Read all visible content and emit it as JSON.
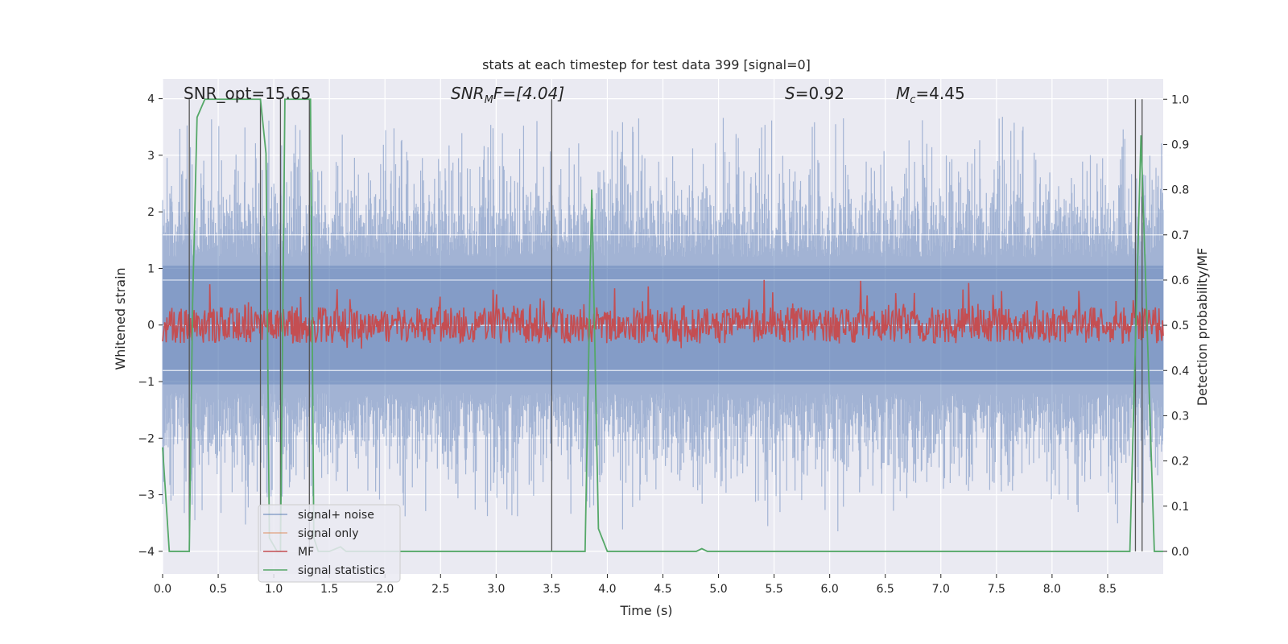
{
  "chart_data": {
    "type": "line",
    "title": "stats at each timestep for test data 399 [signal=0]",
    "xlabel": "Time (s)",
    "ylabel": "Whitened strain",
    "ylabel_right": "Detection probability/MF",
    "xlim": [
      0.0,
      9.0
    ],
    "ylim": [
      -4.4,
      4.35
    ],
    "ylim_right": [
      -0.05,
      1.045
    ],
    "xticks": [
      "0.0",
      "0.5",
      "1.0",
      "1.5",
      "2.0",
      "2.5",
      "3.0",
      "3.5",
      "4.0",
      "4.5",
      "5.0",
      "5.5",
      "6.0",
      "6.5",
      "7.0",
      "7.5",
      "8.0",
      "8.5"
    ],
    "xtick_values": [
      0.0,
      0.5,
      1.0,
      1.5,
      2.0,
      2.5,
      3.0,
      3.5,
      4.0,
      4.5,
      5.0,
      5.5,
      6.0,
      6.5,
      7.0,
      7.5,
      8.0,
      8.5
    ],
    "yticks": [
      "−4",
      "−3",
      "−2",
      "−1",
      "0",
      "1",
      "2",
      "3",
      "4"
    ],
    "ytick_values": [
      -4,
      -3,
      -2,
      -1,
      0,
      1,
      2,
      3,
      4
    ],
    "yticks_right": [
      "0.0",
      "0.1",
      "0.2",
      "0.3",
      "0.4",
      "0.5",
      "0.6",
      "0.7",
      "0.8",
      "0.9",
      "1.0"
    ],
    "ytick_right_values": [
      0.0,
      0.1,
      0.2,
      0.3,
      0.4,
      0.5,
      0.6,
      0.7,
      0.8,
      0.9,
      1.0
    ],
    "grid": true,
    "legend_placement": "lower-left",
    "annotations": {
      "snr_opt": "SNR_opt=15.65",
      "snr_mf_main": "SNR",
      "snr_mf_sub": "M",
      "snr_mf_rest": "F=[4.04]",
      "s_main": "S",
      "s_rest": "=0.92",
      "mc_main": "M",
      "mc_sub": "c",
      "mc_rest": "=4.45"
    },
    "colors": {
      "noise": "#4c72b0",
      "signal_only": "#dd8452",
      "mf": "#c44e52",
      "stat": "#55a868",
      "background": "#eaeaf2"
    },
    "series": [
      {
        "name": "signal+ noise",
        "description_range": [
          -3.5,
          4.0
        ]
      },
      {
        "name": "signal only"
      },
      {
        "name": "MF"
      },
      {
        "name": "signal statistics",
        "x": [
          0.0,
          0.06,
          0.24,
          0.27,
          0.31,
          0.38,
          0.5,
          0.7,
          0.88,
          0.93,
          0.96,
          1.03,
          1.05,
          1.06,
          1.1,
          1.14,
          1.3,
          1.33,
          1.36,
          1.4,
          1.5,
          1.6,
          1.65,
          1.7,
          3.8,
          3.86,
          3.92,
          4.0,
          4.8,
          4.85,
          4.9,
          8.7,
          8.8,
          8.92,
          9.0
        ],
        "values": [
          0.23,
          0.0,
          0.0,
          0.55,
          0.96,
          1.0,
          1.0,
          1.0,
          1.0,
          0.88,
          0.03,
          0.0,
          0.0,
          0.0,
          1.0,
          1.0,
          1.0,
          1.0,
          0.03,
          0.0,
          0.0,
          0.01,
          0.0,
          0.0,
          0.0,
          0.8,
          0.05,
          0.0,
          0.0,
          0.006,
          0.0,
          0.0,
          0.92,
          0.0,
          0.0
        ]
      }
    ],
    "vertical_lines_x": [
      0.24,
      0.88,
      1.06,
      1.32,
      3.5,
      8.75,
      8.81
    ],
    "right_hlines": [
      0.5,
      0.7,
      0.6,
      0.4
    ]
  }
}
